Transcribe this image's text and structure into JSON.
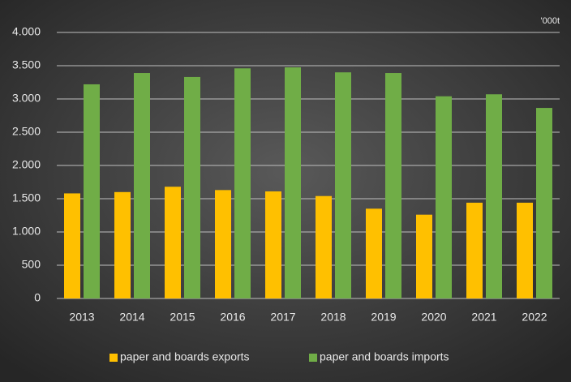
{
  "chart_data": {
    "type": "bar",
    "annotation": "'000t",
    "categories": [
      "2013",
      "2014",
      "2015",
      "2016",
      "2017",
      "2018",
      "2019",
      "2020",
      "2021",
      "2022"
    ],
    "series": [
      {
        "name": "paper and boards exports",
        "color": "#ffc000",
        "values": [
          1580,
          1600,
          1680,
          1630,
          1610,
          1540,
          1350,
          1260,
          1440,
          1440
        ]
      },
      {
        "name": "paper and boards imports",
        "color": "#70ad47",
        "values": [
          3220,
          3390,
          3330,
          3460,
          3475,
          3400,
          3390,
          3040,
          3070,
          2865
        ]
      }
    ],
    "ylim": [
      0,
      4000
    ],
    "yticks": [
      0,
      500,
      {
        "value": 1000,
        "label": "1.000"
      },
      {
        "value": 1500,
        "label": "1.500"
      },
      {
        "value": 2000,
        "label": "2.000"
      },
      {
        "value": 2500,
        "label": "2.500"
      },
      {
        "value": 3000,
        "label": "3.000"
      },
      {
        "value": 3500,
        "label": "3.500"
      },
      {
        "value": 4000,
        "label": "4.000"
      }
    ],
    "grid": true,
    "legend": "bottom"
  }
}
